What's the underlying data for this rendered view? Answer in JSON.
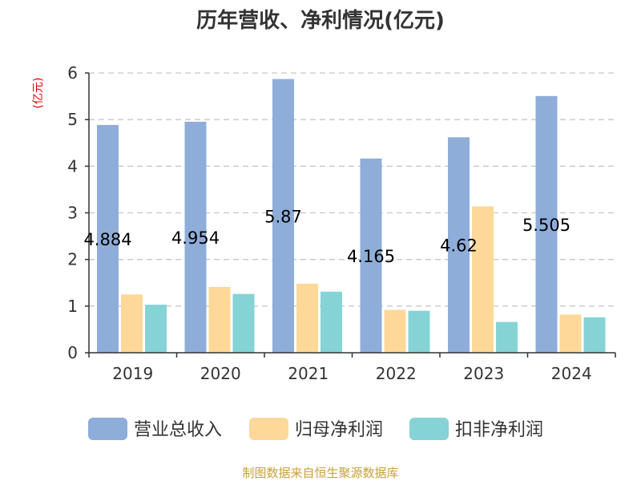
{
  "chart_data": {
    "type": "bar",
    "title": "历年营收、净利情况(亿元)",
    "unit_label": "(亿元)",
    "categories": [
      "2019",
      "2020",
      "2021",
      "2022",
      "2023",
      "2024"
    ],
    "series": [
      {
        "name": "营业总收入",
        "color": "#8eadd9",
        "values": [
          4.884,
          4.954,
          5.87,
          4.165,
          4.62,
          5.505
        ],
        "labels": [
          "4.884",
          "4.954",
          "5.87",
          "4.165",
          "4.62",
          "5.505"
        ]
      },
      {
        "name": "归母净利润",
        "color": "#fdd899",
        "values": [
          1.25,
          1.41,
          1.48,
          0.92,
          3.14,
          0.82
        ]
      },
      {
        "name": "扣非净利润",
        "color": "#86d3d6",
        "values": [
          1.03,
          1.26,
          1.31,
          0.9,
          0.66,
          0.76
        ]
      }
    ],
    "ylim": [
      0,
      6
    ],
    "yticks": [
      "0",
      "1",
      "2",
      "3",
      "4",
      "5",
      "6"
    ],
    "grid": true,
    "legend_position": "bottom",
    "source": "制图数据来自恒生聚源数据库"
  }
}
